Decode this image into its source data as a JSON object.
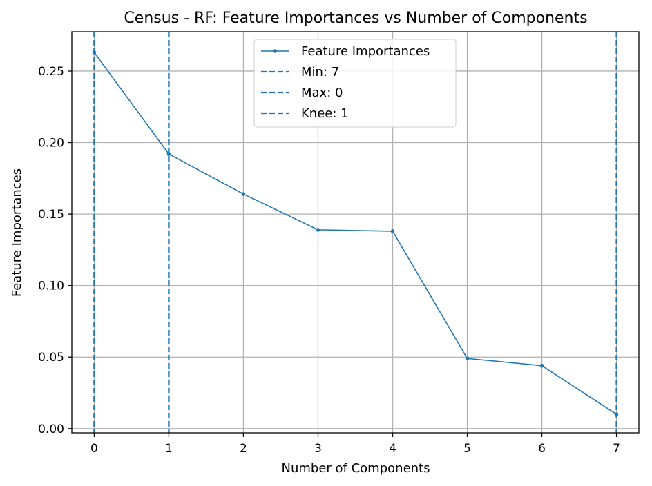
{
  "chart_data": {
    "type": "line",
    "title": "Census - RF: Feature Importances vs Number of Components",
    "xlabel": "Number of Components",
    "ylabel": "Feature Importances",
    "xlim": [
      -0.3,
      7.3
    ],
    "ylim": [
      -0.003,
      0.2775
    ],
    "x_ticks": [
      0,
      1,
      2,
      3,
      4,
      5,
      6,
      7
    ],
    "y_ticks": [
      0.0,
      0.05,
      0.1,
      0.15,
      0.2,
      0.25
    ],
    "y_tick_labels": [
      "0.00",
      "0.05",
      "0.10",
      "0.15",
      "0.20",
      "0.25"
    ],
    "grid": true,
    "legend_position": "upper center",
    "series": [
      {
        "name": "Feature Importances",
        "x": [
          0,
          1,
          2,
          3,
          4,
          5,
          6,
          7
        ],
        "values": [
          0.263,
          0.192,
          0.164,
          0.139,
          0.138,
          0.049,
          0.044,
          0.01
        ],
        "color": "#1f77b4",
        "style": "line-with-markers"
      }
    ],
    "vlines": [
      {
        "name": "Min: 7",
        "x": 7,
        "color": "#1f77b4",
        "style": "dashed"
      },
      {
        "name": "Max: 0",
        "x": 0,
        "color": "#1f77b4",
        "style": "dashed"
      },
      {
        "name": "Knee: 1",
        "x": 1,
        "color": "#1f77b4",
        "style": "dashed"
      }
    ]
  }
}
